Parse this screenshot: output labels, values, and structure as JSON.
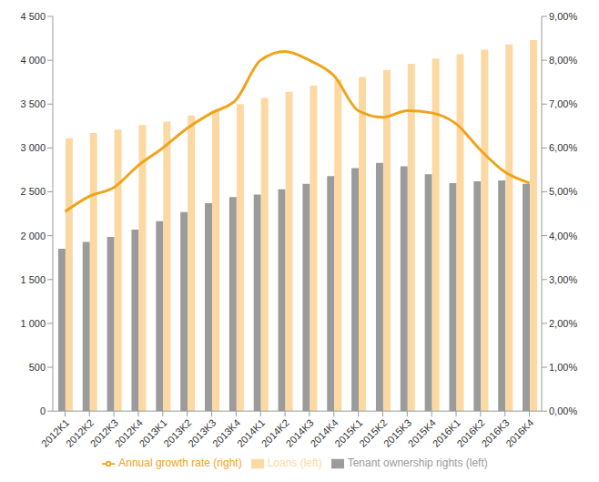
{
  "chart_data": {
    "type": "bar",
    "categories": [
      "2012K1",
      "2012K2",
      "2012K3",
      "2012K4",
      "2013K1",
      "2013K2",
      "2013K3",
      "2013K4",
      "2014K1",
      "2014K2",
      "2014K3",
      "2014K4",
      "2015K1",
      "2015K2",
      "2015K3",
      "2015K4",
      "2016K1",
      "2016K2",
      "2016K3",
      "2016K4"
    ],
    "series": [
      {
        "name": "Tenant ownership rights (left)",
        "type": "bar",
        "color": "#9b9b9b",
        "values": [
          1850,
          1930,
          1985,
          2070,
          2165,
          2270,
          2370,
          2440,
          2470,
          2530,
          2590,
          2680,
          2770,
          2830,
          2790,
          2700,
          2600,
          2620,
          2630,
          2590
        ]
      },
      {
        "name": "Loans (left)",
        "type": "bar",
        "color": "#fcd9a3",
        "values": [
          3110,
          3170,
          3210,
          3260,
          3300,
          3370,
          3430,
          3500,
          3570,
          3640,
          3710,
          3780,
          3810,
          3890,
          3960,
          4020,
          4070,
          4120,
          4180,
          4230
        ]
      },
      {
        "name": "Annual growth rate (right)",
        "type": "line",
        "axis": "y2",
        "color": "#f0a31c",
        "values": [
          4.55,
          4.9,
          5.1,
          5.6,
          6.0,
          6.45,
          6.8,
          7.1,
          8.0,
          8.2,
          8.0,
          7.65,
          6.85,
          6.7,
          6.85,
          6.8,
          6.55,
          5.95,
          5.45,
          5.2
        ]
      }
    ],
    "ylim": [
      0,
      4500
    ],
    "yticks": [
      0,
      500,
      {
        "value": 1000,
        "label": "1 000"
      },
      {
        "value": 1500,
        "label": "1 500"
      },
      {
        "value": 2000,
        "label": "2 000"
      },
      {
        "value": 2500,
        "label": "2 500"
      },
      {
        "value": 3000,
        "label": "3 000"
      },
      {
        "value": 3500,
        "label": "3 500"
      },
      {
        "value": 4000,
        "label": "4 000"
      },
      {
        "value": 4500,
        "label": "4 500"
      }
    ],
    "y2lim": [
      0,
      9
    ],
    "y2ticks": [
      {
        "value": 0,
        "label": "0,00%"
      },
      {
        "value": 1,
        "label": "1,00%"
      },
      {
        "value": 2,
        "label": "2,00%"
      },
      {
        "value": 3,
        "label": "3,00%"
      },
      {
        "value": 4,
        "label": "4,00%"
      },
      {
        "value": 5,
        "label": "5,00%"
      },
      {
        "value": 6,
        "label": "6,00%"
      },
      {
        "value": 7,
        "label": "7,00%"
      },
      {
        "value": 8,
        "label": "8,00%"
      },
      {
        "value": 9,
        "label": "9,00%"
      }
    ],
    "grid": false,
    "legend": "bottom"
  }
}
